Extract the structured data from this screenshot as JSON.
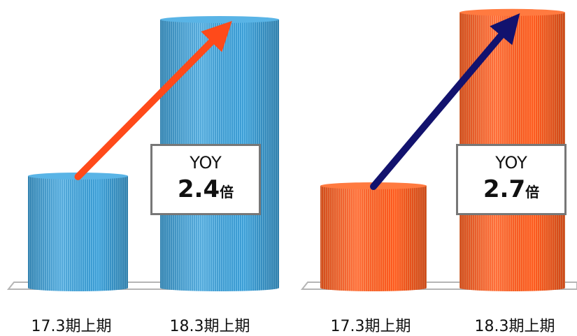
{
  "chart_data": [
    {
      "type": "bar",
      "categories": [
        "17.3期上期",
        "18.3期上期"
      ],
      "values": [
        1.0,
        2.4
      ],
      "color": "#3d9ed6",
      "arrow_color": "#ff4a1a",
      "annotation": {
        "label": "YOY",
        "value": "2.4",
        "unit": "倍"
      }
    },
    {
      "type": "bar",
      "categories": [
        "17.3期上期",
        "18.3期上期"
      ],
      "values": [
        1.0,
        2.7
      ],
      "color": "#ff5a1f",
      "arrow_color": "#12126e",
      "annotation": {
        "label": "YOY",
        "value": "2.7",
        "unit": "倍"
      }
    }
  ]
}
